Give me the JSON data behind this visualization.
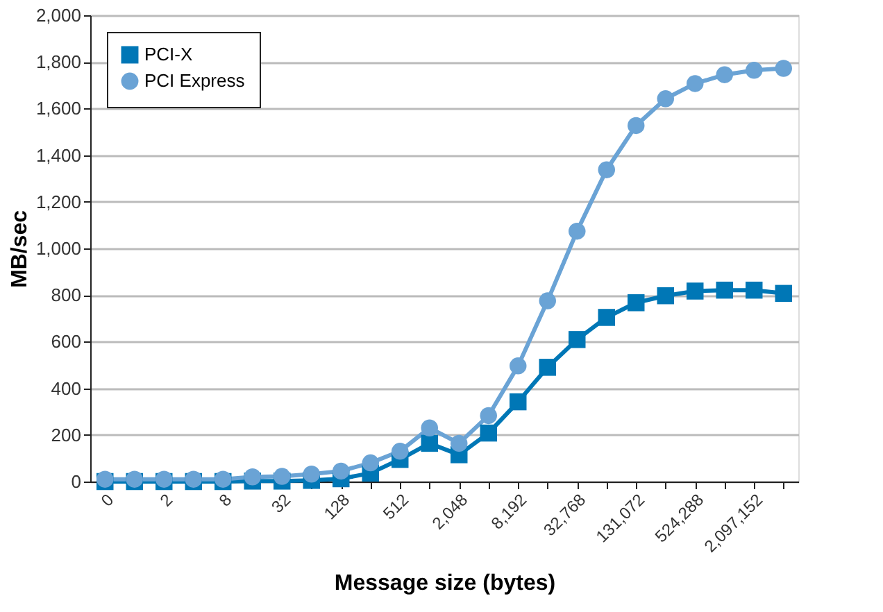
{
  "chart_data": {
    "type": "line",
    "xlabel": "Message size (bytes)",
    "ylabel": "MB/sec",
    "categories": [
      "0",
      null,
      "2",
      null,
      "8",
      null,
      "32",
      null,
      "128",
      null,
      "512",
      null,
      "2,048",
      null,
      "8,192",
      null,
      "32,768",
      null,
      "131,072",
      null,
      "524,288",
      null,
      "2,097,152",
      null
    ],
    "series": [
      {
        "name": "PCI-X",
        "color": "#0077b6",
        "marker": "square",
        "values": [
          0,
          0,
          0,
          0,
          0,
          2,
          2,
          5,
          12,
          36,
          95,
          164,
          115,
          208,
          342,
          490,
          609,
          704,
          767,
          797,
          817,
          821,
          821,
          807
        ]
      },
      {
        "name": "PCI Express",
        "color": "#6aa3d5",
        "marker": "circle",
        "values": [
          10,
          10,
          10,
          10,
          10,
          20,
          22,
          32,
          45,
          80,
          130,
          230,
          164,
          283,
          496,
          775,
          1074,
          1337,
          1527,
          1642,
          1707,
          1745,
          1764,
          1772
        ]
      }
    ],
    "ylim": [
      0,
      2000
    ],
    "yticks": [
      0,
      200,
      400,
      600,
      800,
      {
        "value": 1000,
        "label": "1,000"
      },
      {
        "value": 1200,
        "label": "1,200"
      },
      {
        "value": 1400,
        "label": "1,400"
      },
      {
        "value": 1600,
        "label": "1,600"
      },
      {
        "value": 1800,
        "label": "1,800"
      },
      {
        "value": 2000,
        "label": "2,000"
      }
    ],
    "grid": "y",
    "legend": "top left"
  }
}
